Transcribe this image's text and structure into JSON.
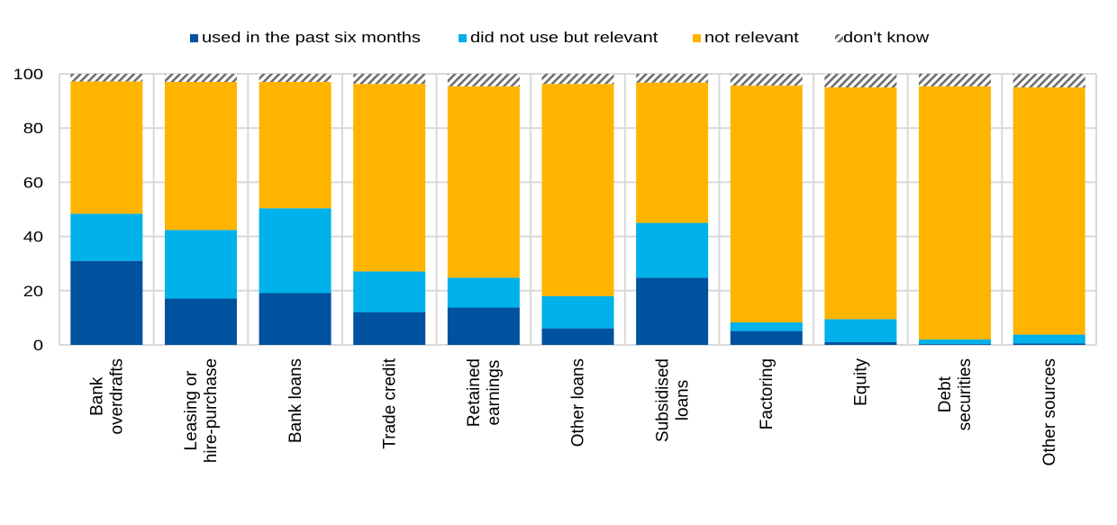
{
  "chart_data": {
    "type": "bar",
    "stacked": true,
    "title": "",
    "xlabel": "",
    "ylabel": "",
    "ylim": [
      0,
      100
    ],
    "yticks": [
      "0",
      "20",
      "40",
      "60",
      "80",
      "100"
    ],
    "grid": true,
    "legend_position": "top-center",
    "categories": [
      [
        "Bank",
        "overdrafts"
      ],
      [
        "Leasing or",
        "hire-purchase"
      ],
      [
        "Bank loans"
      ],
      [
        "Trade credit"
      ],
      [
        "Retained",
        "earnings"
      ],
      [
        "Other loans"
      ],
      [
        "Subsidised",
        "loans"
      ],
      [
        "Factoring"
      ],
      [
        "Equity"
      ],
      [
        "Debt",
        "securities"
      ],
      [
        "Other sources"
      ]
    ],
    "series": [
      {
        "name": "used in the past six months",
        "color": "#00519e",
        "pattern": "solid",
        "values": [
          31.0,
          17.1,
          19.1,
          12.1,
          13.8,
          6.1,
          24.8,
          5.1,
          1.0,
          0.3,
          0.5
        ]
      },
      {
        "name": "did not use but relevant",
        "color": "#00b1ea",
        "pattern": "solid",
        "values": [
          17.4,
          25.3,
          31.3,
          15.0,
          11.0,
          11.9,
          20.2,
          3.2,
          8.5,
          1.7,
          3.3
        ]
      },
      {
        "name": "not relevant",
        "color": "#ffb400",
        "pattern": "solid",
        "values": [
          48.8,
          54.6,
          46.6,
          69.2,
          70.6,
          78.3,
          51.8,
          87.4,
          85.5,
          93.4,
          91.2
        ]
      },
      {
        "name": "don't know",
        "color": "#6e6e6e",
        "pattern": "hatch",
        "values": [
          2.8,
          3.0,
          3.0,
          3.7,
          4.6,
          3.7,
          3.2,
          4.3,
          5.0,
          4.6,
          5.0
        ]
      }
    ]
  }
}
